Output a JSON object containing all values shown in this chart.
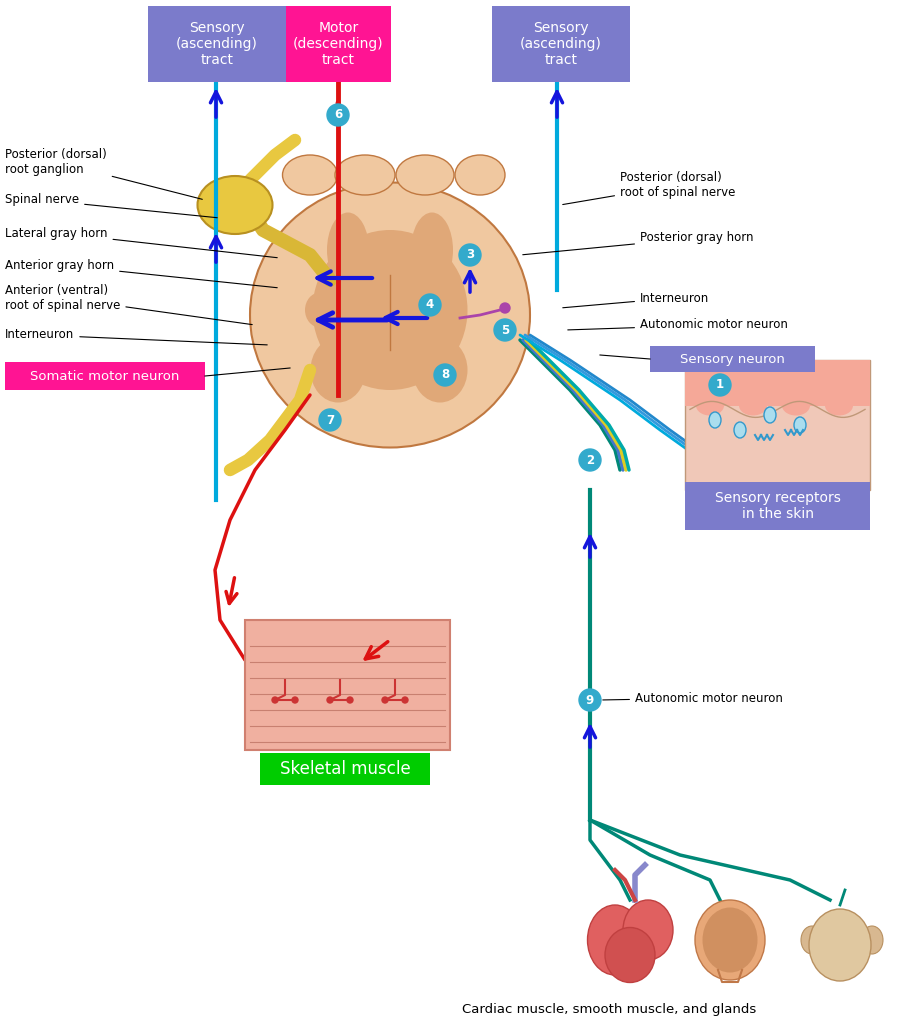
{
  "bg_color": "#ffffff",
  "fig_width": 9.24,
  "fig_height": 10.24,
  "labels": {
    "sensory_ascending_left": "Sensory\n(ascending)\ntract",
    "motor_descending": "Motor\n(descending)\ntract",
    "sensory_ascending_right": "Sensory\n(ascending)\ntract",
    "posterior_dorsal_ganglion": "Posterior (dorsal)\nroot ganglion",
    "spinal_nerve": "Spinal nerve",
    "lateral_gray_horn": "Lateral gray horn",
    "anterior_gray_horn": "Anterior gray horn",
    "anterior_ventral": "Anterior (ventral)\nroot of spinal nerve",
    "interneuron_left": "Interneuron",
    "somatic_motor": "Somatic motor neuron",
    "posterior_dorsal_spinal": "Posterior (dorsal)\nroot of spinal nerve",
    "posterior_gray_horn": "Posterior gray horn",
    "interneuron_right": "Interneuron",
    "autonomic_motor": "Autonomic motor neuron",
    "sensory_neuron": "Sensory neuron",
    "sensory_receptors": "Sensory receptors\nin the skin",
    "skeletal_muscle": "Skeletal muscle",
    "autonomic_motor_neuron9": "Autonomic motor neuron",
    "cardiac_muscle": "Cardiac muscle, smooth muscle, and glands"
  },
  "colors": {
    "sensory_box": "#7b7bcb",
    "motor_box": "#ff1493",
    "somatic_box": "#ff1493",
    "sensory_neuron_box": "#7b7bcb",
    "sensory_receptors_box": "#7b7bcb",
    "skeletal_muscle_box": "#00cc00",
    "blue_arrow": "#1515dd",
    "red_arrow": "#dd1111",
    "teal_nerve": "#008877",
    "cyan_tract": "#00aadd",
    "yellow_nerve": "#ddcc22",
    "cord_outer": "#f0c8a0",
    "cord_inner": "#e0a878",
    "cord_border": "#c07840",
    "ganglion_fill": "#e8c840",
    "ganglion_border": "#b89020",
    "circle_bg": "#33aacc"
  }
}
